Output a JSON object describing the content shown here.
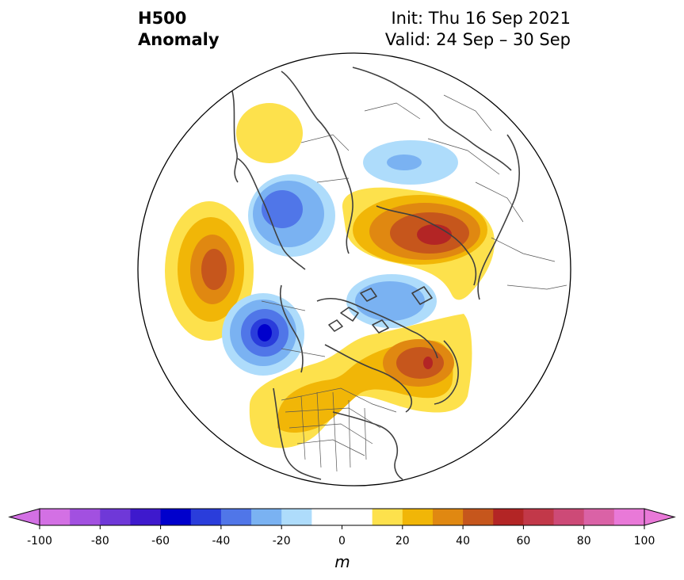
{
  "title": {
    "line1": "H500",
    "line2": "Anomaly"
  },
  "init": {
    "line1": "Init: Thu 16 Sep 2021",
    "line2": "Valid: 24 Sep – 30 Sep"
  },
  "colorbar": {
    "unit": "m",
    "ticks": [
      "-100",
      "-80",
      "-60",
      "-40",
      "-20",
      "0",
      "20",
      "40",
      "60",
      "80",
      "100"
    ],
    "levels": [
      -100,
      -90,
      -80,
      -70,
      -60,
      -50,
      -40,
      -30,
      -20,
      -10,
      10,
      20,
      30,
      40,
      50,
      60,
      70,
      80,
      90,
      100
    ],
    "colors": [
      "#d370e4",
      "#a250e0",
      "#6f38d8",
      "#3e19cd",
      "#0000cc",
      "#2a3ddb",
      "#5076e8",
      "#7ab2f2",
      "#aedcfb",
      "#ffffff",
      "#ffffff",
      "#fde14c",
      "#f1b607",
      "#e08811",
      "#c6561c",
      "#b32525",
      "#c23849",
      "#cd4a77",
      "#da62a6",
      "#e979d8"
    ],
    "extend_low_color": "#d370e4",
    "extend_high_color": "#e979d8"
  },
  "map": {
    "projection": "north-polar-stereographic",
    "positive_color_scale": [
      "#fde14c",
      "#f1b607",
      "#e08811",
      "#c6561c",
      "#b32525"
    ],
    "negative_color_scale": [
      "#aedcfb",
      "#7ab2f2",
      "#5076e8",
      "#2a3ddb",
      "#0000cc"
    ]
  }
}
